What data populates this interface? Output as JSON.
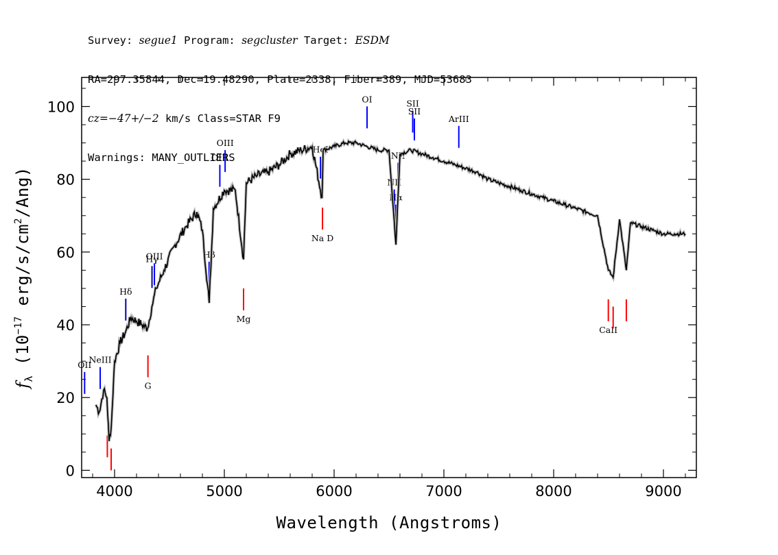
{
  "header": {
    "survey_label": "Survey:",
    "survey": "segue1",
    "program_label": "Program:",
    "program": "segcluster",
    "target_label": "Target:",
    "target": "ESDM",
    "line2": "RA=297.35844, Dec=19.48290, Plate=2338, Fiber=389, MJD=53683",
    "cz": "cz=−47+/−2",
    "cz_unit": " km/s Class=STAR F9",
    "warnings": "Warnings: MANY_OUTLIERS"
  },
  "chart_data": {
    "type": "line",
    "xlabel": "Wavelength (Angstroms)",
    "ylabel": "fλ (10⁻¹⁷ erg/s/cm²/Ang)",
    "xlim": [
      3700,
      9300
    ],
    "ylim": [
      -2,
      108
    ],
    "x_ticks": [
      4000,
      5000,
      6000,
      7000,
      8000,
      9000
    ],
    "y_ticks": [
      0,
      20,
      40,
      60,
      80,
      100
    ],
    "series": [
      {
        "color": "#000000",
        "x": [
          3830,
          3860,
          3900,
          3930,
          3950,
          3970,
          4000,
          4050,
          4100,
          4150,
          4200,
          4250,
          4300,
          4340,
          4380,
          4450,
          4550,
          4650,
          4750,
          4800,
          4862,
          4900,
          5000,
          5100,
          5175,
          5200,
          5300,
          5400,
          5500,
          5600,
          5700,
          5800,
          5890,
          5900,
          6000,
          6100,
          6200,
          6300,
          6400,
          6500,
          6563,
          6600,
          6700,
          6800,
          6900,
          7000,
          7100,
          7200,
          7300,
          7400,
          7500,
          7600,
          7700,
          7800,
          7900,
          8000,
          8100,
          8200,
          8300,
          8400,
          8498,
          8542,
          8600,
          8662,
          8700,
          8800,
          8900,
          9000,
          9100,
          9200
        ],
        "y": [
          18,
          16,
          22,
          20,
          8,
          12,
          30,
          35,
          38,
          42,
          41,
          40,
          39,
          45,
          50,
          55,
          62,
          67,
          71,
          66,
          46,
          72,
          77,
          77,
          58,
          79,
          81,
          82,
          84,
          87,
          88,
          89,
          75,
          88,
          89,
          90,
          90,
          89,
          88,
          88,
          62,
          87,
          88,
          87,
          86,
          85,
          84,
          83,
          82,
          80,
          79,
          78,
          77,
          76,
          75,
          74,
          73,
          72,
          71,
          70,
          55,
          53,
          69,
          55,
          68,
          67,
          66,
          65,
          65,
          65
        ]
      }
    ],
    "emission_lines": [
      {
        "label": "OII",
        "x": 3727,
        "color": "#0000ff"
      },
      {
        "label": "NeIII",
        "x": 3869,
        "color": "#0000ff"
      },
      {
        "label": "Hδ",
        "x": 4102,
        "color": "#0000a0"
      },
      {
        "label": "Hγ",
        "x": 4341,
        "color": "#0000a0"
      },
      {
        "label": "OIII",
        "x": 4363,
        "color": "#0000ff"
      },
      {
        "label": "Hβ",
        "x": 4861,
        "color": "#0000ff"
      },
      {
        "label": "OIII",
        "x": 4959,
        "color": "#0000ff"
      },
      {
        "label": "OIII",
        "x": 5007,
        "color": "#0000ff"
      },
      {
        "label": "HeI",
        "x": 5876,
        "color": "#0000ff"
      },
      {
        "label": "OI",
        "x": 6300,
        "color": "#0000ff"
      },
      {
        "label": "NII",
        "x": 6548,
        "color": "#0000ff"
      },
      {
        "label": "Hα",
        "x": 6563,
        "color": "#0000ff"
      },
      {
        "label": "NII",
        "x": 6583,
        "color": "#0000ff"
      },
      {
        "label": "SII",
        "x": 6716,
        "color": "#0000ff"
      },
      {
        "label": "SII",
        "x": 6731,
        "color": "#0000ff"
      },
      {
        "label": "ArIII",
        "x": 7136,
        "color": "#0000ff"
      }
    ],
    "absorption_lines": [
      {
        "label": "",
        "x": 3934,
        "color": "#ff0000"
      },
      {
        "label": "",
        "x": 3969,
        "color": "#ff0000"
      },
      {
        "label": "G",
        "x": 4304,
        "color": "#ff0000"
      },
      {
        "label": "Mg",
        "x": 5175,
        "color": "#ff0000"
      },
      {
        "label": "Na D",
        "x": 5894,
        "color": "#ff0000"
      },
      {
        "label": "CaII",
        "x": 8498,
        "color": "#ff0000"
      },
      {
        "label": "",
        "x": 8542,
        "color": "#ff0000"
      },
      {
        "label": "",
        "x": 8662,
        "color": "#ff0000"
      }
    ]
  }
}
